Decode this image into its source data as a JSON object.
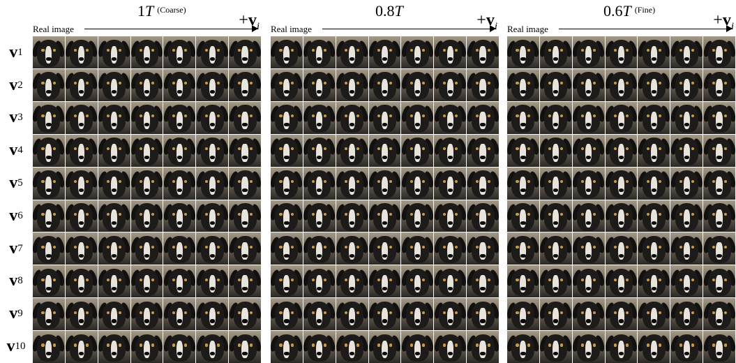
{
  "row_labels": [
    {
      "base": "v",
      "index": "1"
    },
    {
      "base": "v",
      "index": "2"
    },
    {
      "base": "v",
      "index": "3"
    },
    {
      "base": "v",
      "index": "4"
    },
    {
      "base": "v",
      "index": "5"
    },
    {
      "base": "v",
      "index": "6"
    },
    {
      "base": "v",
      "index": "7"
    },
    {
      "base": "v",
      "index": "8"
    },
    {
      "base": "v",
      "index": "9"
    },
    {
      "base": "v",
      "index": "10"
    }
  ],
  "panels": [
    {
      "title_num": "1",
      "title_var": "T",
      "subtitle": "(Coarse)",
      "direction_prefix": "+",
      "direction_vec": "v",
      "direction_sub": "i",
      "arrow_label": "Real image"
    },
    {
      "title_num": "0.8",
      "title_var": "T",
      "subtitle": "",
      "direction_prefix": "+",
      "direction_vec": "v",
      "direction_sub": "i",
      "arrow_label": "Real image"
    },
    {
      "title_num": "0.6",
      "title_var": "T",
      "subtitle": "(Fine)",
      "direction_prefix": "+",
      "direction_vec": "v",
      "direction_sub": "i",
      "arrow_label": "Real image"
    }
  ],
  "grid": {
    "rows": 10,
    "cols": 7
  },
  "colors": {
    "background": "#ffffff",
    "text": "#000000",
    "dog_fur": "#1d1b19",
    "dog_blaze": "#e8e4dc",
    "photo_backdrop": "#a59a88"
  }
}
